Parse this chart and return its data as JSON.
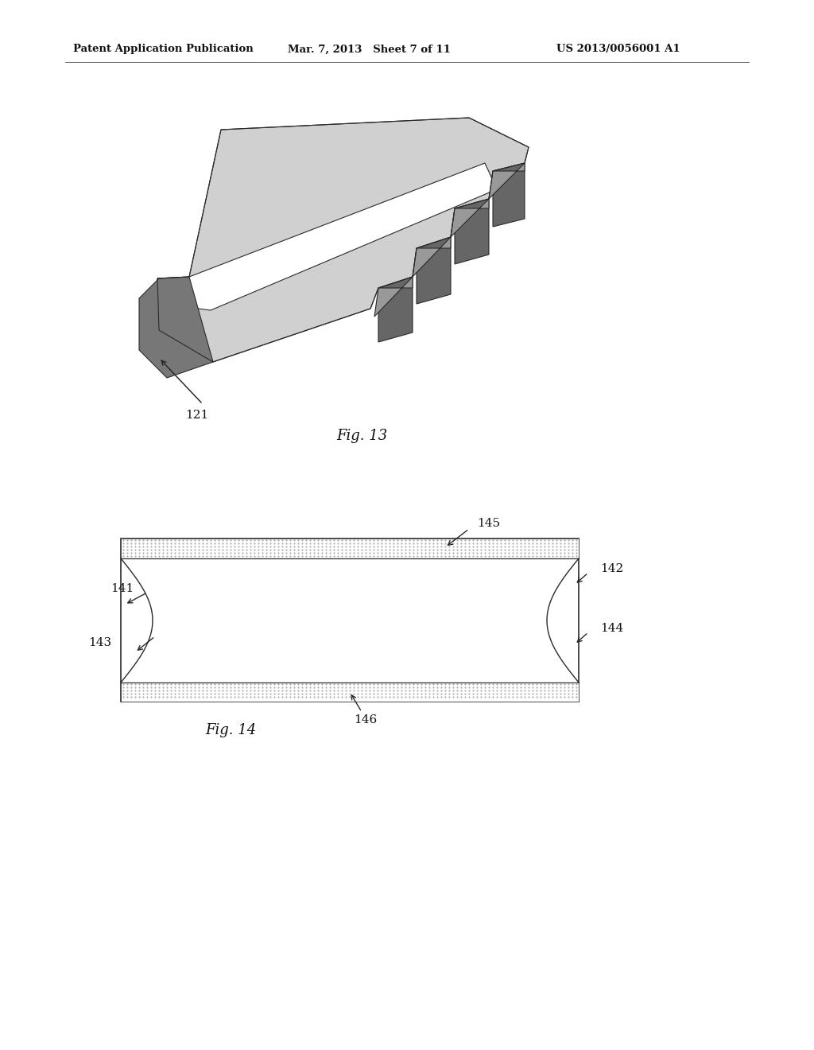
{
  "header_left": "Patent Application Publication",
  "header_mid": "Mar. 7, 2013   Sheet 7 of 11",
  "header_right": "US 2013/0056001 A1",
  "fig13_label": "Fig. 13",
  "fig14_label": "Fig. 14",
  "bg_color": "#ffffff",
  "line_color": "#2a2a2a",
  "fig13_light": "#cccccc",
  "fig13_mid": "#aaaaaa",
  "fig13_dark": "#666666",
  "fig13_white": "#f0f0f0"
}
